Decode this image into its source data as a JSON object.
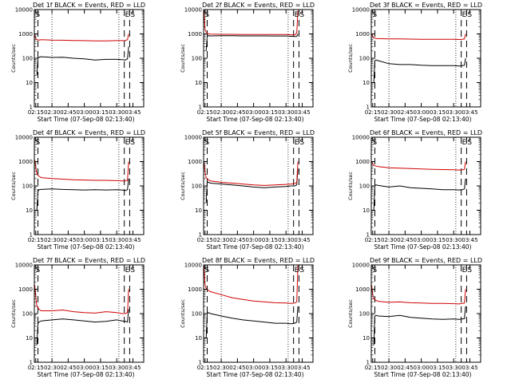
{
  "figure": {
    "background": "#ffffff"
  },
  "colors": {
    "events": "#000000",
    "lld": "#d00000",
    "axes": "#000000"
  },
  "common": {
    "x_ticks": [
      "02:15",
      "02:30",
      "02:45",
      "03:00",
      "03:15",
      "03:30",
      "03:45"
    ],
    "y_ticks": [
      "1",
      "10",
      "100",
      "1000",
      "10000"
    ],
    "ylabel": "Counts/sec",
    "xlabel": "Start Time (07-Sep-08 02:13:40)",
    "marker_s": "S",
    "marker_e": "E"
  },
  "chart_data": [
    {
      "type": "line",
      "title": "Det 1f BLACK = Events, RED = LLD",
      "ylim": [
        1,
        10000
      ],
      "y_scale": "log",
      "xlim_minutes": [
        133.67,
        235
      ],
      "series": [
        {
          "name": "Events",
          "color": "#000000",
          "x": [
            136,
            137,
            138,
            140,
            145,
            150,
            160,
            170,
            180,
            190,
            200,
            210,
            215,
            218,
            220,
            221
          ],
          "values": [
            20,
            100,
            110,
            115,
            112,
            108,
            110,
            100,
            95,
            85,
            90,
            90,
            88,
            85,
            95,
            300
          ]
        },
        {
          "name": "LLD",
          "color": "#d00000",
          "x": [
            134,
            135,
            136,
            138,
            140,
            150,
            160,
            170,
            180,
            190,
            200,
            210,
            215,
            218,
            220,
            221
          ],
          "values": [
            900,
            650,
            580,
            560,
            580,
            560,
            550,
            540,
            530,
            520,
            520,
            530,
            530,
            540,
            580,
            1000
          ]
        }
      ],
      "vlines_dashed": [
        137,
        217,
        222
      ],
      "vlines_dotted": [
        150,
        212
      ],
      "markers": [
        {
          "label": "S",
          "x": 134
        },
        {
          "label": "E",
          "x": 217
        },
        {
          "label": "S",
          "x": 222
        }
      ]
    },
    {
      "type": "line",
      "title": "Det 2f BLACK = Events, RED = LLD",
      "ylim": [
        1,
        10000
      ],
      "y_scale": "log",
      "xlim_minutes": [
        133.67,
        235
      ],
      "series": [
        {
          "name": "Events",
          "color": "#000000",
          "x": [
            136,
            137,
            138,
            140,
            150,
            160,
            170,
            180,
            190,
            200,
            210,
            215,
            218,
            220,
            221
          ],
          "values": [
            200,
            800,
            850,
            830,
            840,
            840,
            830,
            830,
            830,
            820,
            820,
            800,
            780,
            800,
            1000
          ]
        },
        {
          "name": "LLD",
          "color": "#d00000",
          "x": [
            134,
            135,
            136,
            138,
            140,
            150,
            160,
            170,
            180,
            190,
            200,
            210,
            215,
            218,
            220,
            221
          ],
          "values": [
            9000,
            1500,
            1200,
            1000,
            980,
            960,
            960,
            950,
            950,
            950,
            950,
            940,
            920,
            900,
            1100,
            9000
          ]
        }
      ],
      "vlines_dashed": [
        137,
        217,
        222
      ],
      "vlines_dotted": [
        150,
        212
      ],
      "markers": [
        {
          "label": "S",
          "x": 134
        },
        {
          "label": "E",
          "x": 217
        },
        {
          "label": "S",
          "x": 222
        }
      ]
    },
    {
      "type": "line",
      "title": "Det 3f BLACK = Events, RED = LLD",
      "ylim": [
        1,
        10000
      ],
      "y_scale": "log",
      "xlim_minutes": [
        133.67,
        235
      ],
      "series": [
        {
          "name": "Events",
          "color": "#000000",
          "x": [
            136,
            137,
            138,
            140,
            150,
            160,
            170,
            180,
            190,
            200,
            210,
            215,
            218,
            220,
            221
          ],
          "values": [
            10,
            80,
            85,
            80,
            60,
            55,
            55,
            52,
            50,
            50,
            50,
            48,
            50,
            52,
            100
          ]
        },
        {
          "name": "LLD",
          "color": "#d00000",
          "x": [
            134,
            135,
            136,
            138,
            140,
            150,
            160,
            170,
            180,
            190,
            200,
            210,
            215,
            218,
            220,
            221
          ],
          "values": [
            1000,
            800,
            700,
            650,
            640,
            620,
            620,
            610,
            600,
            600,
            600,
            600,
            590,
            600,
            620,
            1000
          ]
        }
      ],
      "vlines_dashed": [
        137,
        217,
        222
      ],
      "vlines_dotted": [
        150,
        212
      ],
      "markers": [
        {
          "label": "S",
          "x": 134
        },
        {
          "label": "E",
          "x": 217
        },
        {
          "label": "S",
          "x": 222
        }
      ]
    },
    {
      "type": "line",
      "title": "Det 4f BLACK = Events, RED = LLD",
      "ylim": [
        1,
        10000
      ],
      "y_scale": "log",
      "xlim_minutes": [
        133.67,
        235
      ],
      "series": [
        {
          "name": "Events",
          "color": "#000000",
          "x": [
            136,
            137,
            138,
            140,
            150,
            160,
            170,
            180,
            190,
            200,
            210,
            215,
            218,
            220,
            221
          ],
          "values": [
            10,
            60,
            70,
            72,
            75,
            72,
            70,
            68,
            70,
            68,
            70,
            68,
            65,
            70,
            200
          ]
        },
        {
          "name": "LLD",
          "color": "#d00000",
          "x": [
            134,
            135,
            136,
            138,
            140,
            150,
            160,
            170,
            180,
            190,
            200,
            210,
            215,
            218,
            220,
            221
          ],
          "values": [
            1200,
            600,
            300,
            250,
            220,
            200,
            190,
            180,
            175,
            170,
            170,
            165,
            160,
            160,
            170,
            1000
          ]
        }
      ],
      "vlines_dashed": [
        137,
        217,
        222
      ],
      "vlines_dotted": [
        150,
        212
      ],
      "markers": [
        {
          "label": "S",
          "x": 134
        },
        {
          "label": "E",
          "x": 217
        },
        {
          "label": "S",
          "x": 222
        }
      ]
    },
    {
      "type": "line",
      "title": "Det 5f BLACK = Events, RED = LLD",
      "ylim": [
        1,
        10000
      ],
      "y_scale": "log",
      "xlim_minutes": [
        133.67,
        235
      ],
      "series": [
        {
          "name": "Events",
          "color": "#000000",
          "x": [
            136,
            137,
            138,
            140,
            150,
            160,
            170,
            180,
            190,
            200,
            210,
            215,
            218,
            220,
            221
          ],
          "values": [
            20,
            150,
            140,
            130,
            120,
            110,
            100,
            90,
            85,
            90,
            95,
            100,
            100,
            110,
            500
          ]
        },
        {
          "name": "LLD",
          "color": "#d00000",
          "x": [
            134,
            135,
            136,
            138,
            140,
            150,
            160,
            170,
            180,
            190,
            200,
            210,
            215,
            218,
            220,
            221
          ],
          "values": [
            900,
            400,
            220,
            180,
            160,
            140,
            130,
            120,
            110,
            105,
            110,
            115,
            120,
            125,
            140,
            1000
          ]
        }
      ],
      "vlines_dashed": [
        137,
        217,
        222
      ],
      "vlines_dotted": [
        150,
        212
      ],
      "markers": [
        {
          "label": "S",
          "x": 134
        },
        {
          "label": "E",
          "x": 217
        },
        {
          "label": "S",
          "x": 222
        }
      ]
    },
    {
      "type": "line",
      "title": "Det 6f BLACK = Events, RED = LLD",
      "ylim": [
        1,
        10000
      ],
      "y_scale": "log",
      "xlim_minutes": [
        133.67,
        235
      ],
      "series": [
        {
          "name": "Events",
          "color": "#000000",
          "x": [
            136,
            137,
            138,
            140,
            150,
            160,
            170,
            180,
            190,
            200,
            210,
            215,
            218,
            220,
            221
          ],
          "values": [
            10,
            100,
            110,
            105,
            90,
            100,
            85,
            80,
            75,
            70,
            70,
            68,
            70,
            75,
            200
          ]
        },
        {
          "name": "LLD",
          "color": "#d00000",
          "x": [
            134,
            135,
            136,
            138,
            140,
            150,
            160,
            170,
            180,
            190,
            200,
            210,
            215,
            218,
            220,
            221
          ],
          "values": [
            1000,
            800,
            700,
            650,
            620,
            560,
            540,
            520,
            500,
            480,
            470,
            460,
            450,
            460,
            480,
            1000
          ]
        }
      ],
      "vlines_dashed": [
        137,
        217,
        222
      ],
      "vlines_dotted": [
        150,
        212
      ],
      "markers": [
        {
          "label": "S",
          "x": 134
        },
        {
          "label": "E",
          "x": 217
        },
        {
          "label": "S",
          "x": 222
        }
      ]
    },
    {
      "type": "line",
      "title": "Det 7f BLACK = Events, RED = LLD",
      "ylim": [
        1,
        10000
      ],
      "y_scale": "log",
      "xlim_minutes": [
        133.67,
        235
      ],
      "series": [
        {
          "name": "Events",
          "color": "#000000",
          "x": [
            136,
            137,
            138,
            140,
            150,
            160,
            170,
            180,
            190,
            200,
            210,
            215,
            218,
            220,
            221
          ],
          "values": [
            5,
            40,
            45,
            50,
            55,
            60,
            55,
            50,
            45,
            48,
            55,
            50,
            48,
            45,
            150
          ]
        },
        {
          "name": "LLD",
          "color": "#d00000",
          "x": [
            134,
            135,
            136,
            138,
            140,
            150,
            160,
            170,
            180,
            190,
            200,
            210,
            215,
            218,
            220,
            221
          ],
          "values": [
            1500,
            500,
            200,
            150,
            130,
            130,
            140,
            120,
            110,
            105,
            120,
            110,
            100,
            100,
            110,
            1000
          ]
        }
      ],
      "vlines_dashed": [
        137,
        217,
        222
      ],
      "vlines_dotted": [
        150,
        212
      ],
      "markers": [
        {
          "label": "S",
          "x": 134
        },
        {
          "label": "E",
          "x": 217
        },
        {
          "label": "S",
          "x": 222
        }
      ]
    },
    {
      "type": "line",
      "title": "Det 8f BLACK = Events, RED = LLD",
      "ylim": [
        1,
        10000
      ],
      "y_scale": "log",
      "xlim_minutes": [
        133.67,
        235
      ],
      "series": [
        {
          "name": "Events",
          "color": "#000000",
          "x": [
            136,
            137,
            138,
            140,
            150,
            160,
            170,
            180,
            190,
            200,
            210,
            215,
            218,
            220,
            221
          ],
          "values": [
            10,
            100,
            110,
            100,
            80,
            65,
            55,
            50,
            45,
            40,
            40,
            38,
            40,
            45,
            200
          ]
        },
        {
          "name": "LLD",
          "color": "#d00000",
          "x": [
            134,
            135,
            136,
            138,
            140,
            150,
            160,
            170,
            180,
            190,
            200,
            210,
            215,
            218,
            220,
            221
          ],
          "values": [
            9000,
            1500,
            1100,
            900,
            800,
            600,
            450,
            380,
            330,
            300,
            280,
            270,
            260,
            270,
            300,
            10000
          ]
        }
      ],
      "vlines_dashed": [
        137,
        217,
        222
      ],
      "vlines_dotted": [
        150,
        212
      ],
      "markers": [
        {
          "label": "S",
          "x": 134
        },
        {
          "label": "E",
          "x": 217
        },
        {
          "label": "S",
          "x": 222
        }
      ]
    },
    {
      "type": "line",
      "title": "Det 9f BLACK = Events, RED = LLD",
      "ylim": [
        1,
        10000
      ],
      "y_scale": "log",
      "xlim_minutes": [
        133.67,
        235
      ],
      "series": [
        {
          "name": "Events",
          "color": "#000000",
          "x": [
            136,
            137,
            138,
            140,
            150,
            160,
            170,
            180,
            190,
            200,
            210,
            215,
            218,
            220,
            221
          ],
          "values": [
            5,
            80,
            85,
            80,
            75,
            85,
            70,
            65,
            60,
            58,
            60,
            58,
            60,
            62,
            200
          ]
        },
        {
          "name": "LLD",
          "color": "#d00000",
          "x": [
            134,
            135,
            136,
            138,
            140,
            150,
            160,
            170,
            180,
            190,
            200,
            210,
            215,
            218,
            220,
            221
          ],
          "values": [
            1500,
            600,
            400,
            350,
            320,
            290,
            300,
            280,
            270,
            260,
            260,
            255,
            250,
            260,
            270,
            1000
          ]
        }
      ],
      "vlines_dashed": [
        137,
        217,
        222
      ],
      "vlines_dotted": [
        150,
        212
      ],
      "markers": [
        {
          "label": "S",
          "x": 134
        },
        {
          "label": "E",
          "x": 217
        },
        {
          "label": "S",
          "x": 222
        }
      ]
    }
  ]
}
